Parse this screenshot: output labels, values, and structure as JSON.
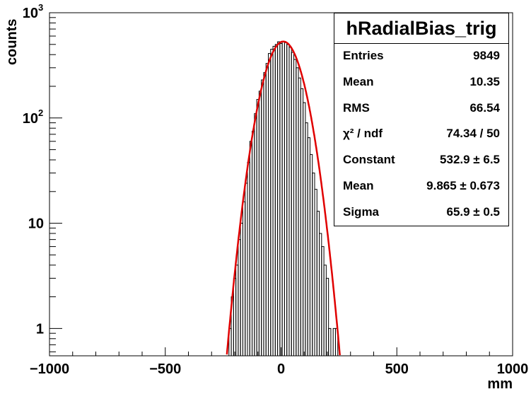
{
  "chart_data": {
    "type": "histogram",
    "title": "",
    "xlabel": "mm",
    "ylabel": "counts",
    "xlim": [
      -1000,
      1000
    ],
    "ylim": [
      0.55,
      1000
    ],
    "ylog": true,
    "x_ticks": [
      "−1000",
      "−500",
      "0",
      "500",
      "1000"
    ],
    "x_tick_values": [
      -1000,
      -500,
      0,
      500,
      1000
    ],
    "y_ticks": [
      {
        "value": 1,
        "label": "1"
      },
      {
        "value": 10,
        "label": "10"
      },
      {
        "value": 100,
        "label": "10",
        "sup": "2"
      },
      {
        "value": 1000,
        "label": "10",
        "sup": "3"
      }
    ],
    "bin_width": 10,
    "bins": [
      {
        "x": -220,
        "y": 1
      },
      {
        "x": -210,
        "y": 2
      },
      {
        "x": -200,
        "y": 3
      },
      {
        "x": -190,
        "y": 4
      },
      {
        "x": -180,
        "y": 7
      },
      {
        "x": -170,
        "y": 10
      },
      {
        "x": -160,
        "y": 16
      },
      {
        "x": -150,
        "y": 24
      },
      {
        "x": -140,
        "y": 38
      },
      {
        "x": -130,
        "y": 60
      },
      {
        "x": -120,
        "y": 75
      },
      {
        "x": -110,
        "y": 110
      },
      {
        "x": -100,
        "y": 150
      },
      {
        "x": -90,
        "y": 180
      },
      {
        "x": -80,
        "y": 230
      },
      {
        "x": -70,
        "y": 270
      },
      {
        "x": -60,
        "y": 330
      },
      {
        "x": -50,
        "y": 410
      },
      {
        "x": -40,
        "y": 450
      },
      {
        "x": -30,
        "y": 480
      },
      {
        "x": -20,
        "y": 500
      },
      {
        "x": -10,
        "y": 530
      },
      {
        "x": 0,
        "y": 510
      },
      {
        "x": 10,
        "y": 530
      },
      {
        "x": 20,
        "y": 520
      },
      {
        "x": 30,
        "y": 500
      },
      {
        "x": 40,
        "y": 470
      },
      {
        "x": 50,
        "y": 420
      },
      {
        "x": 60,
        "y": 360
      },
      {
        "x": 70,
        "y": 300
      },
      {
        "x": 80,
        "y": 240
      },
      {
        "x": 90,
        "y": 190
      },
      {
        "x": 100,
        "y": 140
      },
      {
        "x": 110,
        "y": 90
      },
      {
        "x": 120,
        "y": 65
      },
      {
        "x": 130,
        "y": 45
      },
      {
        "x": 140,
        "y": 30
      },
      {
        "x": 150,
        "y": 21
      },
      {
        "x": 160,
        "y": 13
      },
      {
        "x": 170,
        "y": 8
      },
      {
        "x": 180,
        "y": 6
      },
      {
        "x": 190,
        "y": 4
      },
      {
        "x": 200,
        "y": 3
      },
      {
        "x": 210,
        "y": 1
      },
      {
        "x": 230,
        "y": 1
      },
      {
        "x": 240,
        "y": 1
      }
    ],
    "fit": {
      "type": "gaus",
      "constant": 532.9,
      "mean": 9.865,
      "sigma": 65.9,
      "x_range": [
        -260,
        270
      ]
    },
    "colors": {
      "histogram": "#000000",
      "fit": "#e00000"
    }
  },
  "stats": {
    "title": "hRadialBias_trig",
    "rows": [
      {
        "label": "Entries",
        "value": "9849"
      },
      {
        "label": "Mean",
        "value": "10.35"
      },
      {
        "label": "RMS",
        "value": "66.54"
      },
      {
        "label": "χ² / ndf",
        "value": "74.34 / 50"
      },
      {
        "label": "Constant",
        "value": "532.9 ± 6.5"
      },
      {
        "label": "Mean",
        "value": "9.865 ± 0.673"
      },
      {
        "label": "Sigma",
        "value": "65.9 ± 0.5"
      }
    ]
  }
}
